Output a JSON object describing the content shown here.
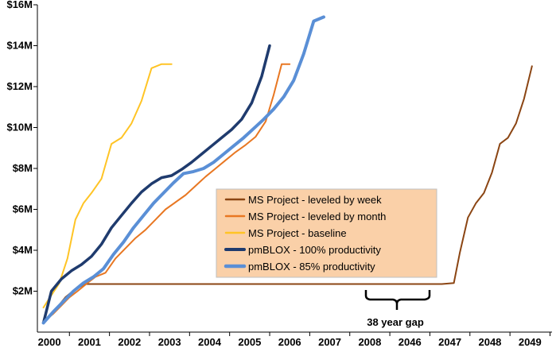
{
  "chart_data": {
    "type": "line",
    "y_ticks": [
      "$2M",
      "$4M",
      "$6M",
      "$8M",
      "$10M",
      "$12M",
      "$14M",
      "$16M"
    ],
    "y_tick_values": [
      2,
      4,
      6,
      8,
      10,
      12,
      14,
      16
    ],
    "ylim": [
      0,
      16
    ],
    "x_ticks": [
      "2000",
      "2001",
      "2002",
      "2003",
      "2004",
      "2005",
      "2006",
      "2007",
      "2008",
      "2046",
      "2047",
      "2048",
      "2049"
    ],
    "x_tick_values": [
      0,
      1,
      2,
      3,
      4,
      5,
      6,
      7,
      8,
      9,
      10,
      11,
      12
    ],
    "xlim": [
      -0.3,
      12.55
    ],
    "grid": false,
    "legend_position": "lower-right",
    "annotation": "38 year gap",
    "series": [
      {
        "name": "MS Project - leveled by week",
        "color": "#8B4513",
        "width": 2,
        "points": [
          [
            -0.15,
            0.5
          ],
          [
            0.15,
            1.1
          ],
          [
            0.4,
            1.7
          ],
          [
            0.65,
            2.1
          ],
          [
            0.9,
            2.35
          ],
          [
            1.1,
            2.35
          ],
          [
            2,
            2.35
          ],
          [
            3,
            2.35
          ],
          [
            4,
            2.35
          ],
          [
            5,
            2.35
          ],
          [
            6,
            2.35
          ],
          [
            7,
            2.35
          ],
          [
            8,
            2.35
          ],
          [
            9,
            2.35
          ],
          [
            9.8,
            2.35
          ],
          [
            10.1,
            2.4
          ],
          [
            10.25,
            3.9
          ],
          [
            10.45,
            5.6
          ],
          [
            10.65,
            6.3
          ],
          [
            10.85,
            6.8
          ],
          [
            11.05,
            7.8
          ],
          [
            11.25,
            9.2
          ],
          [
            11.45,
            9.5
          ],
          [
            11.65,
            10.2
          ],
          [
            11.85,
            11.4
          ],
          [
            12.05,
            13.0
          ]
        ]
      },
      {
        "name": "MS Project - leveled by month",
        "color": "#E87722",
        "width": 2,
        "points": [
          [
            -0.15,
            0.5
          ],
          [
            0.1,
            0.9
          ],
          [
            0.3,
            1.3
          ],
          [
            0.5,
            1.7
          ],
          [
            0.7,
            2.0
          ],
          [
            0.95,
            2.4
          ],
          [
            1.15,
            2.7
          ],
          [
            1.4,
            2.9
          ],
          [
            1.65,
            3.6
          ],
          [
            1.9,
            4.1
          ],
          [
            2.15,
            4.6
          ],
          [
            2.4,
            5.0
          ],
          [
            2.65,
            5.5
          ],
          [
            2.9,
            6.0
          ],
          [
            3.15,
            6.35
          ],
          [
            3.4,
            6.7
          ],
          [
            3.65,
            7.15
          ],
          [
            3.9,
            7.6
          ],
          [
            4.15,
            8.0
          ],
          [
            4.4,
            8.4
          ],
          [
            4.65,
            8.8
          ],
          [
            4.9,
            9.15
          ],
          [
            5.15,
            9.55
          ],
          [
            5.4,
            10.3
          ],
          [
            5.6,
            11.6
          ],
          [
            5.8,
            13.1
          ],
          [
            6.0,
            13.1
          ]
        ]
      },
      {
        "name": "MS Project - baseline",
        "color": "#FFC425",
        "width": 2,
        "points": [
          [
            -0.15,
            1.2
          ],
          [
            0.05,
            1.8
          ],
          [
            0.25,
            2.4
          ],
          [
            0.45,
            3.6
          ],
          [
            0.65,
            5.5
          ],
          [
            0.85,
            6.3
          ],
          [
            1.05,
            6.8
          ],
          [
            1.3,
            7.5
          ],
          [
            1.55,
            9.2
          ],
          [
            1.8,
            9.5
          ],
          [
            2.05,
            10.2
          ],
          [
            2.3,
            11.3
          ],
          [
            2.55,
            12.9
          ],
          [
            2.8,
            13.1
          ],
          [
            3.05,
            13.1
          ]
        ]
      },
      {
        "name": "pmBLOX - 100% productivity",
        "color": "#1F3B6E",
        "width": 3.5,
        "points": [
          [
            -0.15,
            0.45
          ],
          [
            0.05,
            2.0
          ],
          [
            0.3,
            2.6
          ],
          [
            0.55,
            3.0
          ],
          [
            0.8,
            3.3
          ],
          [
            1.05,
            3.7
          ],
          [
            1.3,
            4.3
          ],
          [
            1.55,
            5.1
          ],
          [
            1.8,
            5.7
          ],
          [
            2.05,
            6.3
          ],
          [
            2.3,
            6.85
          ],
          [
            2.55,
            7.25
          ],
          [
            2.8,
            7.55
          ],
          [
            3.05,
            7.65
          ],
          [
            3.3,
            7.95
          ],
          [
            3.55,
            8.3
          ],
          [
            3.8,
            8.7
          ],
          [
            4.05,
            9.1
          ],
          [
            4.3,
            9.5
          ],
          [
            4.55,
            9.9
          ],
          [
            4.8,
            10.4
          ],
          [
            5.05,
            11.2
          ],
          [
            5.3,
            12.5
          ],
          [
            5.5,
            14.0
          ]
        ]
      },
      {
        "name": "pmBLOX - 85% productivity",
        "color": "#5A8FD6",
        "width": 4,
        "points": [
          [
            -0.15,
            0.45
          ],
          [
            0.1,
            1.0
          ],
          [
            0.35,
            1.5
          ],
          [
            0.6,
            2.0
          ],
          [
            0.85,
            2.4
          ],
          [
            1.1,
            2.7
          ],
          [
            1.35,
            3.1
          ],
          [
            1.6,
            3.8
          ],
          [
            1.85,
            4.4
          ],
          [
            2.1,
            5.1
          ],
          [
            2.35,
            5.7
          ],
          [
            2.6,
            6.3
          ],
          [
            2.85,
            6.8
          ],
          [
            3.1,
            7.3
          ],
          [
            3.35,
            7.75
          ],
          [
            3.6,
            7.85
          ],
          [
            3.85,
            8.0
          ],
          [
            4.1,
            8.3
          ],
          [
            4.35,
            8.7
          ],
          [
            4.6,
            9.1
          ],
          [
            4.85,
            9.5
          ],
          [
            5.1,
            9.95
          ],
          [
            5.35,
            10.4
          ],
          [
            5.6,
            10.9
          ],
          [
            5.85,
            11.5
          ],
          [
            6.1,
            12.3
          ],
          [
            6.35,
            13.6
          ],
          [
            6.6,
            15.2
          ],
          [
            6.85,
            15.4
          ]
        ]
      }
    ]
  }
}
